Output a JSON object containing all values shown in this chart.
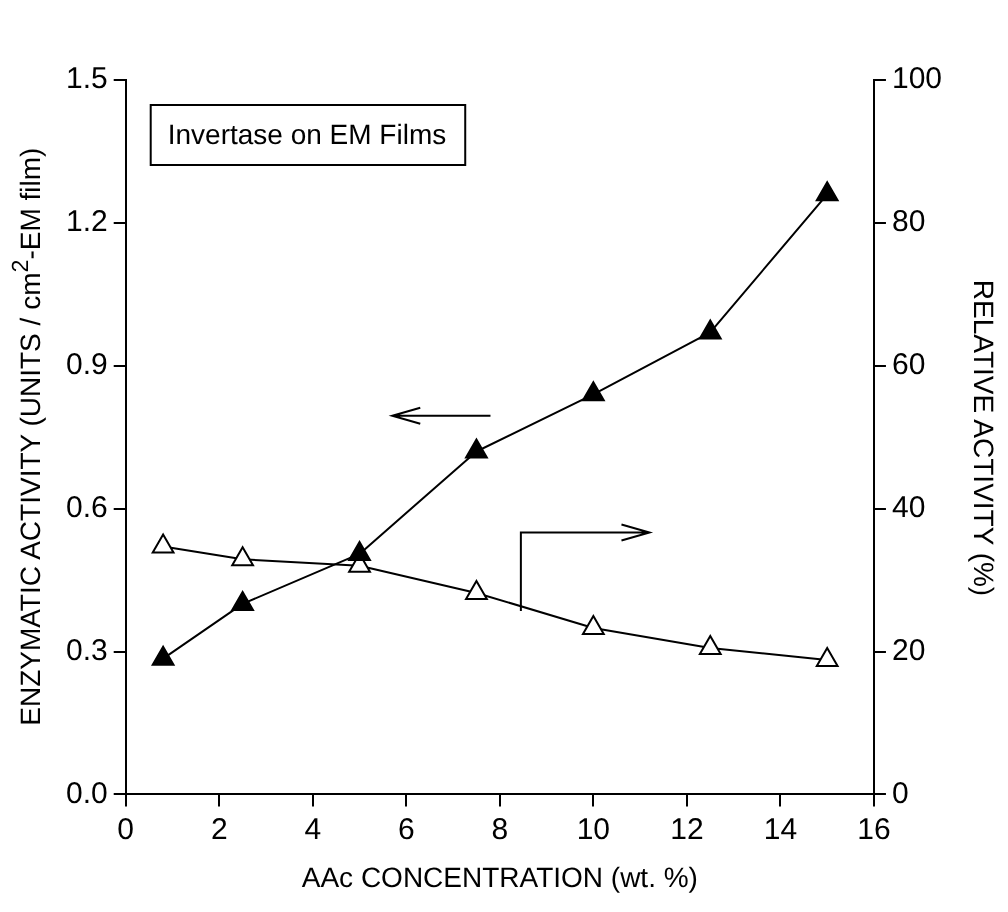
{
  "chart_data": {
    "type": "line",
    "xlabel": "AAc CONCENTRATION (wt. %)",
    "ylabel": "ENZYMATIC ACTIVITY (UNITS / cm$^{2}$-EM film)",
    "y2label": "RELATIVE ACTIVITY (%)",
    "annotations": [
      "Invertase on EM Films"
    ],
    "x": [
      0.8,
      2.5,
      5,
      7.5,
      10,
      12.5,
      15
    ],
    "series": [
      {
        "color": "#000000",
        "values": [
          0.285,
          0.4,
          0.505,
          0.72,
          0.84,
          0.97,
          1.26
        ]
      },
      {
        "color": "#000000",
        "axis": "y2",
        "values": [
          34.7,
          32.9,
          32.0,
          28.2,
          23.3,
          20.5,
          18.8
        ]
      }
    ],
    "xlim": [
      0,
      16
    ],
    "xticks": [
      0,
      2,
      4,
      6,
      8,
      10,
      12,
      14,
      16
    ],
    "ylim": [
      0,
      1.5
    ],
    "yticks": [
      {
        "value": 0,
        "label": "0.0"
      },
      {
        "value": 0.3,
        "label": "0.3"
      },
      {
        "value": 0.6,
        "label": "0.6"
      },
      {
        "value": 0.9,
        "label": "0.9"
      },
      {
        "value": 1.2,
        "label": "1.2"
      },
      {
        "value": 1.5,
        "label": "1.5"
      }
    ],
    "y2lim": [
      0,
      100
    ],
    "y2ticks": [
      0,
      20,
      40,
      60,
      80,
      100
    ],
    "grid": false,
    "legend": false,
    "marker": "triangle",
    "line_style": "solid"
  }
}
